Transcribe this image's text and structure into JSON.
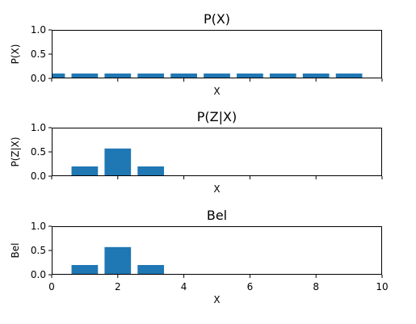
{
  "chart_data": [
    {
      "type": "bar",
      "title": "P(X)",
      "xlabel": "X",
      "ylabel": "P(X)",
      "x": [
        0,
        1,
        2,
        3,
        4,
        5,
        6,
        7,
        8,
        9
      ],
      "values": [
        0.1,
        0.1,
        0.1,
        0.1,
        0.1,
        0.1,
        0.1,
        0.1,
        0.1,
        0.1
      ],
      "ylim": [
        0,
        1
      ],
      "xlim": [
        0,
        10
      ],
      "yticks": [
        "0.0",
        "0.5",
        "1.0"
      ],
      "xticks": [],
      "grid": false,
      "color": "#1f77b4"
    },
    {
      "type": "bar",
      "title": "P(Z|X)",
      "xlabel": "X",
      "ylabel": "P(Z|X)",
      "x": [
        0,
        1,
        2,
        3,
        4,
        5,
        6,
        7,
        8,
        9
      ],
      "values": [
        0.01,
        0.2,
        0.57,
        0.2,
        0.01,
        0,
        0,
        0,
        0,
        0
      ],
      "ylim": [
        0,
        1
      ],
      "xlim": [
        0,
        10
      ],
      "yticks": [
        "0.0",
        "0.5",
        "1.0"
      ],
      "xticks": [],
      "grid": false,
      "color": "#1f77b4"
    },
    {
      "type": "bar",
      "title": "Bel",
      "xlabel": "X",
      "ylabel": "Bel",
      "x": [
        0,
        1,
        2,
        3,
        4,
        5,
        6,
        7,
        8,
        9
      ],
      "values": [
        0.01,
        0.2,
        0.57,
        0.2,
        0.01,
        0,
        0,
        0,
        0,
        0
      ],
      "ylim": [
        0,
        1
      ],
      "xlim": [
        0,
        10
      ],
      "yticks": [
        "0.0",
        "0.5",
        "1.0"
      ],
      "xticks": [
        "0",
        "2",
        "4",
        "6",
        "8",
        "10"
      ],
      "grid": false,
      "color": "#1f77b4"
    }
  ]
}
